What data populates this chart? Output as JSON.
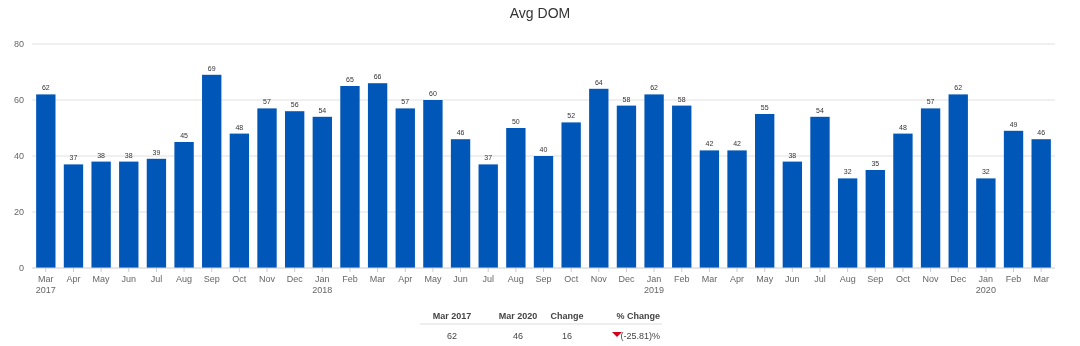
{
  "chart_data": {
    "type": "bar",
    "title": "Avg DOM",
    "categories": [
      "Mar 2017",
      "Apr",
      "May",
      "Jun",
      "Jul",
      "Aug",
      "Sep",
      "Oct",
      "Nov",
      "Dec",
      "Jan 2018",
      "Feb",
      "Mar",
      "Apr",
      "May",
      "Jun",
      "Jul",
      "Aug",
      "Sep",
      "Oct",
      "Nov",
      "Dec",
      "Jan 2019",
      "Feb",
      "Mar",
      "Apr",
      "May",
      "Jun",
      "Jul",
      "Aug",
      "Sep",
      "Oct",
      "Nov",
      "Dec",
      "Jan 2020",
      "Feb",
      "Mar"
    ],
    "values": [
      62,
      37,
      38,
      38,
      39,
      45,
      69,
      48,
      57,
      56,
      54,
      65,
      66,
      57,
      60,
      46,
      37,
      50,
      40,
      52,
      64,
      58,
      62,
      58,
      42,
      42,
      55,
      38,
      54,
      32,
      35,
      48,
      57,
      62,
      32,
      49,
      46
    ],
    "color": "#0057b8",
    "ylim": [
      0,
      80
    ],
    "yticks": [
      0,
      20,
      40,
      60,
      80
    ],
    "grid": "y",
    "data_labels": true,
    "annotations": [
      "Mar 2017",
      "Mar 2020",
      "Change",
      "% Change",
      "62",
      "46",
      "16",
      "(-25.81)%"
    ]
  }
}
